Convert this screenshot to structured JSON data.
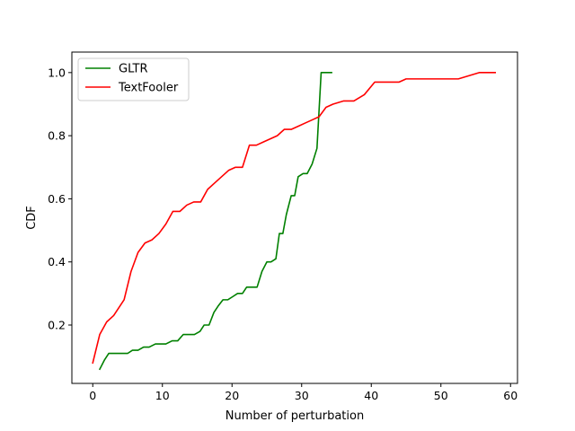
{
  "chart_data": {
    "type": "line",
    "title": "",
    "xlabel": "Number of perturbation",
    "ylabel": "CDF",
    "xlim": [
      -3,
      61
    ],
    "ylim": [
      0.015,
      1.065
    ],
    "xticks": [
      0,
      10,
      20,
      30,
      40,
      50,
      60
    ],
    "yticks": [
      0.2,
      0.4,
      0.6,
      0.8,
      1.0
    ],
    "xtick_labels": [
      "0",
      "10",
      "20",
      "30",
      "40",
      "50",
      "60"
    ],
    "ytick_labels": [
      "0.2",
      "0.4",
      "0.6",
      "0.8",
      "1.0"
    ],
    "grid": false,
    "legend": "top-left",
    "series": [
      {
        "name": "GLTR",
        "color": "#008000",
        "x": [
          1,
          1.7,
          2.3,
          3,
          4,
          5,
          5.7,
          6.5,
          7.3,
          8.1,
          9,
          9.7,
          10.5,
          11.4,
          12.2,
          13,
          13.8,
          14.6,
          15.4,
          16,
          16.7,
          17.4,
          18,
          18.7,
          19.4,
          20.1,
          20.8,
          21.5,
          22.1,
          22.8,
          23.6,
          24.3,
          25,
          25.6,
          26.3,
          26.8,
          27.3,
          27.8,
          28.5,
          29,
          29.5,
          30.2,
          30.8,
          31.5,
          32.2,
          32.8,
          33.4,
          34.0,
          34.3
        ],
        "y": [
          0.06,
          0.09,
          0.11,
          0.11,
          0.11,
          0.11,
          0.12,
          0.12,
          0.13,
          0.13,
          0.14,
          0.14,
          0.14,
          0.15,
          0.15,
          0.17,
          0.17,
          0.17,
          0.18,
          0.2,
          0.2,
          0.24,
          0.26,
          0.28,
          0.28,
          0.29,
          0.3,
          0.3,
          0.32,
          0.32,
          0.32,
          0.37,
          0.4,
          0.4,
          0.41,
          0.49,
          0.49,
          0.55,
          0.61,
          0.61,
          0.67,
          0.68,
          0.68,
          0.71,
          0.76,
          1.0,
          1.0,
          1.0,
          1.0
        ]
      },
      {
        "name": "TextFooler",
        "color": "#ff0000",
        "x": [
          0,
          1,
          2,
          3,
          4.5,
          5.5,
          6.5,
          7.5,
          8.5,
          9.5,
          10.5,
          11.5,
          12.5,
          13.5,
          14.5,
          15.5,
          16.5,
          17.5,
          18.5,
          19.5,
          20.5,
          21.5,
          22.5,
          23.5,
          24.5,
          25.5,
          26.5,
          27.5,
          28.5,
          29.5,
          30.5,
          31.5,
          32.5,
          33.5,
          34.5,
          36,
          37.5,
          39,
          40.5,
          41.5,
          42.5,
          44,
          45,
          46.5,
          48,
          49.5,
          51,
          52.5,
          54,
          55.5,
          57.8
        ],
        "y": [
          0.08,
          0.17,
          0.21,
          0.23,
          0.28,
          0.37,
          0.43,
          0.46,
          0.47,
          0.49,
          0.52,
          0.56,
          0.56,
          0.58,
          0.59,
          0.59,
          0.63,
          0.65,
          0.67,
          0.69,
          0.7,
          0.7,
          0.77,
          0.77,
          0.78,
          0.79,
          0.8,
          0.82,
          0.82,
          0.83,
          0.84,
          0.85,
          0.86,
          0.89,
          0.9,
          0.91,
          0.91,
          0.93,
          0.97,
          0.97,
          0.97,
          0.97,
          0.98,
          0.98,
          0.98,
          0.98,
          0.98,
          0.98,
          0.99,
          1.0,
          1.0
        ]
      }
    ]
  }
}
